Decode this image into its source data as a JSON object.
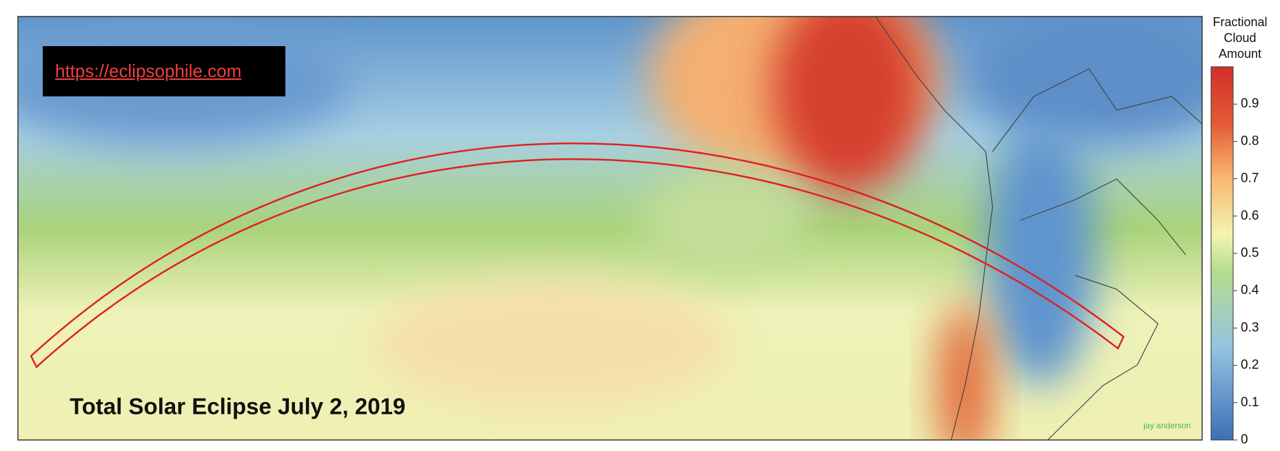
{
  "link": "https://eclipsophile.com",
  "title": "Total Solar Eclipse July 2, 2019",
  "credit": "jay anderson",
  "colorbar": {
    "title": [
      "Fractional",
      "Cloud",
      "Amount"
    ],
    "lim": [
      0,
      1
    ],
    "ticks": [
      0,
      0.1,
      0.2,
      0.3,
      0.4,
      0.5,
      0.6,
      0.7,
      0.8,
      0.9
    ]
  }
}
